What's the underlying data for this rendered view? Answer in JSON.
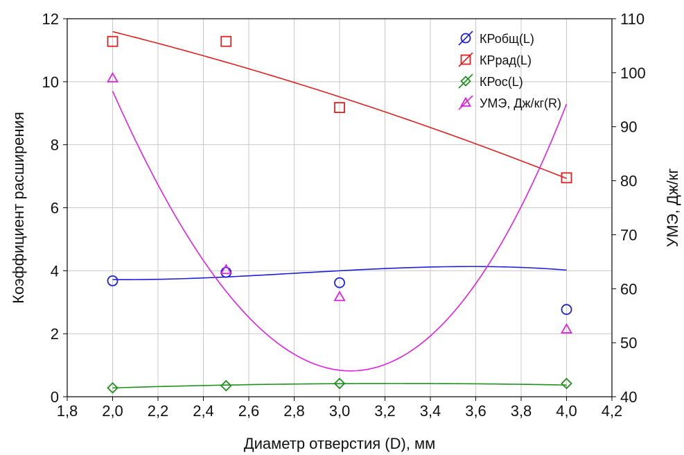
{
  "chart_data": {
    "type": "line",
    "xlabel": "Диаметр отверстия (D), мм",
    "ylabel_left": "Коэффициент расширения",
    "ylabel_right": "УМЭ, Дж/кг",
    "xlim": [
      1.8,
      4.2
    ],
    "ylim_left": [
      0,
      12
    ],
    "ylim_right": [
      40,
      110
    ],
    "x_ticks": [
      "1,8",
      "2,0",
      "2,2",
      "2,4",
      "2,6",
      "2,8",
      "3,0",
      "3,2",
      "3,4",
      "3,6",
      "3,8",
      "4,0",
      "4,2"
    ],
    "x_tick_values": [
      1.8,
      2.0,
      2.2,
      2.4,
      2.6,
      2.8,
      3.0,
      3.2,
      3.4,
      3.6,
      3.8,
      4.0,
      4.2
    ],
    "y_ticks_left": [
      "0",
      "2",
      "4",
      "6",
      "8",
      "10",
      "12"
    ],
    "y_tick_values_left": [
      0,
      2,
      4,
      6,
      8,
      10,
      12
    ],
    "y_ticks_right": [
      "40",
      "50",
      "60",
      "70",
      "80",
      "90",
      "100",
      "110"
    ],
    "y_tick_values_right": [
      40,
      50,
      60,
      70,
      80,
      90,
      100,
      110
    ],
    "grid": true,
    "legend_position": "top-right",
    "series": [
      {
        "name": "КРобщ(L)",
        "axis": "left",
        "marker": "circle",
        "color": "#1f1fd8",
        "x": [
          2.0,
          2.5,
          3.0,
          4.0
        ],
        "values": [
          3.68,
          3.95,
          3.62,
          2.77
        ],
        "fit": [
          3.719,
          -0.063,
          0.579,
          -0.236
        ]
      },
      {
        "name": "КРрад(L)",
        "axis": "left",
        "marker": "square",
        "color": "#e02020",
        "x": [
          2.0,
          2.5,
          3.0,
          4.0
        ],
        "values": [
          11.28,
          11.28,
          9.18,
          6.95
        ],
        "fit": [
          11.59,
          -1.81,
          -0.26,
          0
        ]
      },
      {
        "name": "КРос(L)",
        "axis": "left",
        "marker": "diamond",
        "color": "#1e8f1e",
        "x": [
          2.0,
          2.5,
          3.0,
          4.0
        ],
        "values": [
          0.28,
          0.35,
          0.42,
          0.42
        ],
        "fit": [
          0.2806,
          0.2242,
          -0.0895,
          0
        ]
      },
      {
        "name": "УМЭ, Дж/кг(R)",
        "axis": "right",
        "marker": "triangle",
        "color": "#e020e0",
        "x": [
          2.0,
          2.5,
          3.0,
          4.0
        ],
        "values": [
          99,
          63.5,
          58.5,
          52.5
        ],
        "fit": [
          96.6,
          -94.8,
          39.4,
          3.7
        ]
      }
    ]
  }
}
